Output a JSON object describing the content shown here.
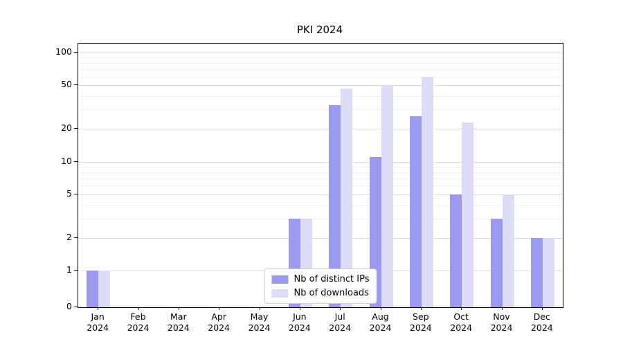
{
  "chart_data": {
    "type": "bar",
    "title": "PKI 2024",
    "x_year": "2024",
    "categories": [
      "Jan",
      "Feb",
      "Mar",
      "Apr",
      "May",
      "Jun",
      "Jul",
      "Aug",
      "Sep",
      "Oct",
      "Nov",
      "Dec"
    ],
    "series": [
      {
        "name": "Nb of distinct IPs",
        "color": "#9a99ee",
        "values": [
          1,
          0,
          0,
          0,
          0,
          3,
          33,
          11,
          26,
          5,
          3,
          2
        ]
      },
      {
        "name": "Nb of downloads",
        "color": "#dcdcf8",
        "values": [
          1,
          0,
          0,
          0,
          0,
          3,
          47,
          50,
          60,
          23,
          5,
          2
        ]
      }
    ],
    "yscale": "symlog",
    "yticks": [
      0,
      1,
      2,
      5,
      10,
      20,
      50,
      100
    ],
    "ytick_minor": [
      3,
      4,
      6,
      7,
      8,
      9,
      30,
      40,
      60,
      70,
      80,
      90
    ],
    "ylim": [
      0,
      120
    ],
    "grid": "horizontal",
    "legend_position": "lower center inside"
  }
}
